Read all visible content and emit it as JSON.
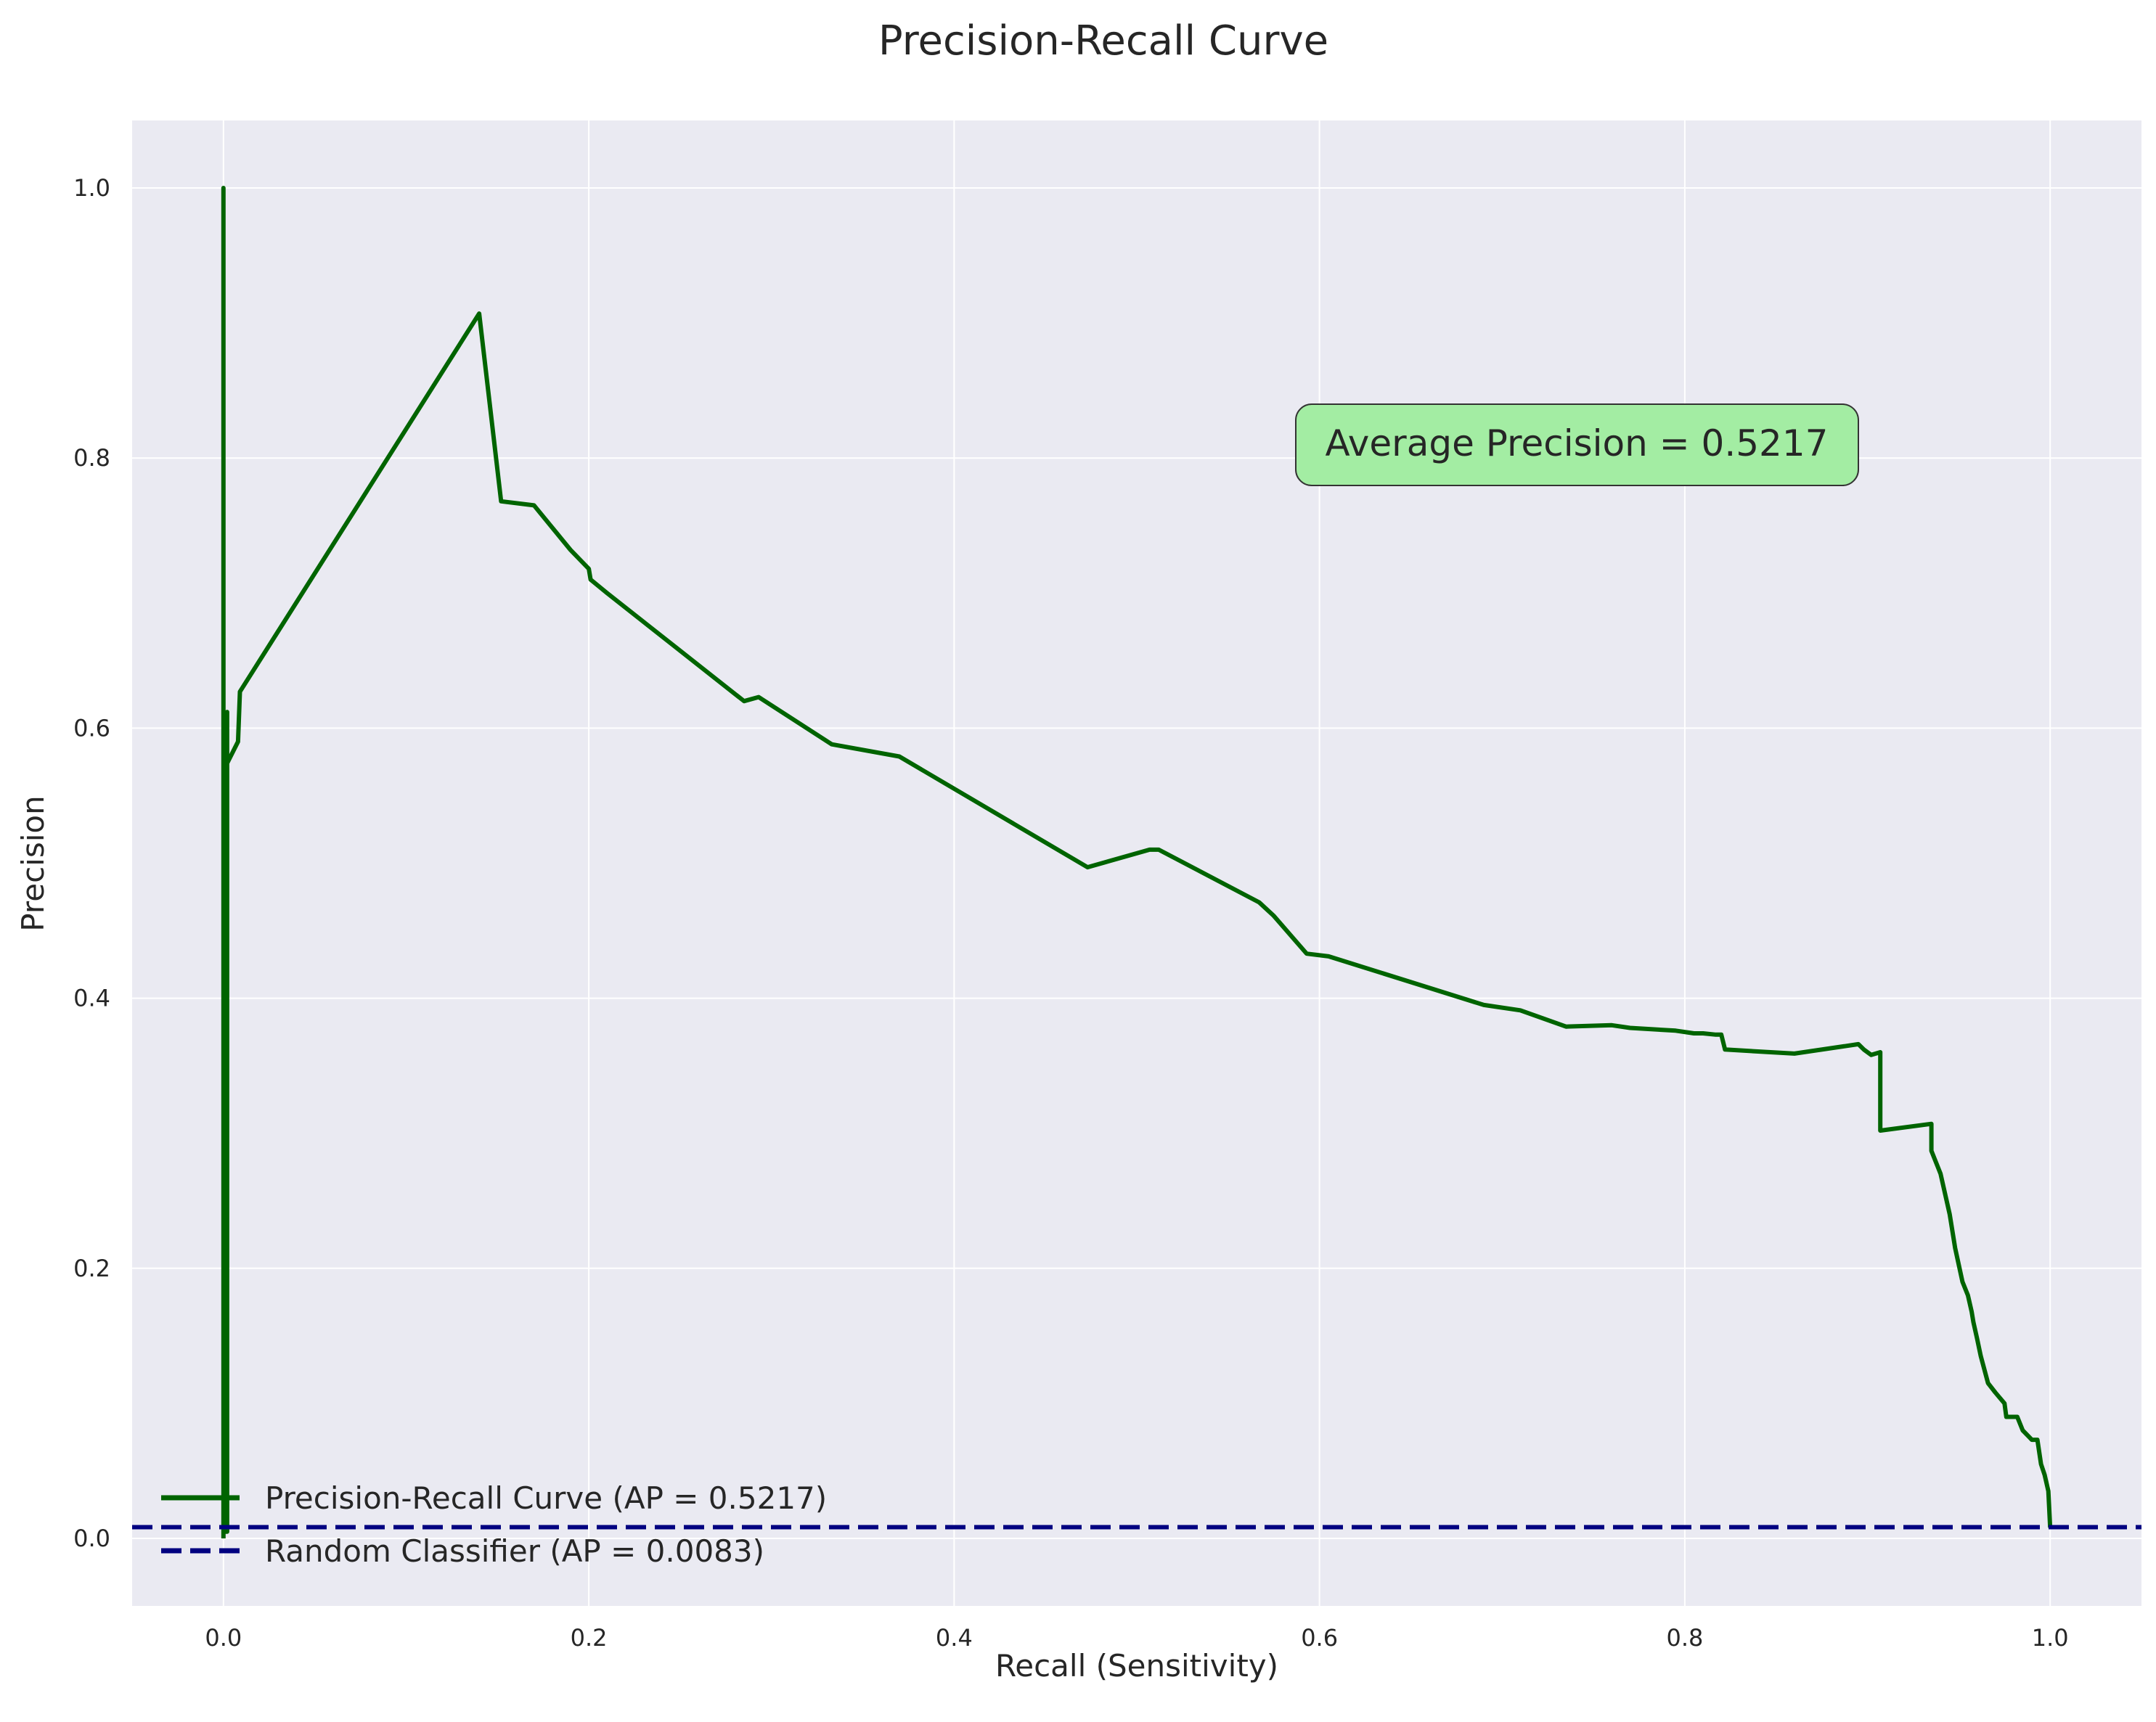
{
  "chart_data": {
    "type": "line",
    "title": "Precision-Recall Curve",
    "xlabel": "Recall (Sensitivity)",
    "ylabel": "Precision",
    "xlim": [
      -0.05,
      1.05
    ],
    "ylim": [
      -0.05,
      1.05
    ],
    "xticks": [
      0.0,
      0.2,
      0.4,
      0.6,
      0.8,
      1.0
    ],
    "xtick_labels": [
      "0.0",
      "0.2",
      "0.4",
      "0.6",
      "0.8",
      "1.0"
    ],
    "yticks": [
      0.0,
      0.2,
      0.4,
      0.6,
      0.8,
      1.0
    ],
    "ytick_labels": [
      "0.0",
      "0.2",
      "0.4",
      "0.6",
      "0.8",
      "1.0"
    ],
    "grid": true,
    "legend_position": "lower-left",
    "annotation": "Average Precision = 0.5217",
    "series": [
      {
        "name": "Precision-Recall Curve (AP = 0.5217)",
        "style": "solid",
        "color": "#006400",
        "x": [
          0.0,
          0.0,
          0.0,
          0.002,
          0.002,
          0.002,
          0.008,
          0.009,
          0.14,
          0.152,
          0.17,
          0.19,
          0.195,
          0.2,
          0.201,
          0.21,
          0.285,
          0.293,
          0.333,
          0.37,
          0.473,
          0.507,
          0.512,
          0.567,
          0.575,
          0.593,
          0.605,
          0.69,
          0.71,
          0.735,
          0.76,
          0.77,
          0.795,
          0.805,
          0.81,
          0.817,
          0.82,
          0.822,
          0.86,
          0.895,
          0.898,
          0.902,
          0.907,
          0.907,
          0.935,
          0.935,
          0.94,
          0.945,
          0.948,
          0.952,
          0.955,
          0.957,
          0.958,
          0.96,
          0.962,
          0.964,
          0.966,
          0.97,
          0.975,
          0.976,
          0.982,
          0.985,
          0.99,
          0.993,
          0.995,
          0.997,
          0.999,
          1.0
        ],
        "y": [
          0.0,
          1.0,
          0.005,
          0.005,
          0.612,
          0.574,
          0.59,
          0.627,
          0.907,
          0.768,
          0.765,
          0.732,
          0.725,
          0.718,
          0.71,
          0.7,
          0.62,
          0.623,
          0.588,
          0.579,
          0.497,
          0.51,
          0.51,
          0.471,
          0.461,
          0.433,
          0.431,
          0.395,
          0.391,
          0.379,
          0.38,
          0.378,
          0.376,
          0.374,
          0.374,
          0.373,
          0.373,
          0.362,
          0.359,
          0.366,
          0.362,
          0.358,
          0.36,
          0.302,
          0.307,
          0.287,
          0.27,
          0.24,
          0.215,
          0.19,
          0.18,
          0.168,
          0.16,
          0.148,
          0.135,
          0.125,
          0.115,
          0.108,
          0.1,
          0.09,
          0.09,
          0.08,
          0.073,
          0.073,
          0.055,
          0.047,
          0.035,
          0.008
        ]
      },
      {
        "name": "Random Classifier (AP = 0.0083)",
        "style": "dashed",
        "color": "#000080",
        "x": [
          -0.05,
          1.05
        ],
        "y": [
          0.0083,
          0.0083
        ]
      }
    ]
  },
  "colors": {
    "plot_background": "#eaeaf2",
    "grid": "#ffffff",
    "annotation_fill": "#a3eda3"
  }
}
